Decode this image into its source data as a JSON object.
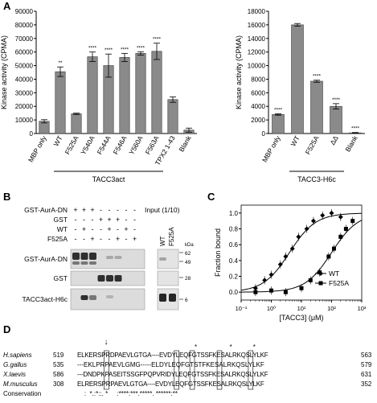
{
  "panels": {
    "a": "A",
    "b": "B",
    "c": "C",
    "d": "D"
  },
  "chart_data": [
    {
      "type": "bar",
      "ylabel": "Kinase activity (CPMA)",
      "ylim": [
        0,
        90000
      ],
      "yticks": [
        0,
        10000,
        20000,
        30000,
        40000,
        50000,
        60000,
        70000,
        80000,
        90000
      ],
      "categories": [
        "MBP only",
        "WT",
        "F525A",
        "Y540A",
        "F544A",
        "F546A",
        "Y560A",
        "F563A",
        "TPX2 1-43",
        "Blank"
      ],
      "values": [
        9000,
        45500,
        14500,
        56500,
        50000,
        56000,
        59000,
        60500,
        25000,
        2500
      ],
      "errors": [
        1200,
        3500,
        500,
        3500,
        8500,
        3000,
        1200,
        6000,
        2000,
        1500
      ],
      "stars": [
        "",
        "**",
        "",
        "****",
        "****",
        "****",
        "****",
        "****",
        "",
        ""
      ],
      "group_label": "TACC3act"
    },
    {
      "type": "bar",
      "ylabel": "Kinase activity (CPMA)",
      "ylim": [
        0,
        18000
      ],
      "yticks": [
        0,
        2000,
        4000,
        6000,
        8000,
        10000,
        12000,
        14000,
        16000,
        18000
      ],
      "categories": [
        "MBP only",
        "WT",
        "F525A",
        "ΔΔ",
        "Blank"
      ],
      "values": [
        2800,
        16000,
        7700,
        4000,
        100
      ],
      "errors": [
        100,
        200,
        150,
        400,
        50
      ],
      "stars": [
        "****",
        "",
        "****",
        "****",
        "****"
      ],
      "group_label": "TACC3-H6c"
    },
    {
      "type": "scatter",
      "xlabel": "[TACC3] (μM)",
      "ylabel": "Fraction bound",
      "xscale": "log",
      "xlim": [
        0.1,
        1000
      ],
      "ylim": [
        -0.1,
        1.1
      ],
      "yticks": [
        0.0,
        0.2,
        0.4,
        0.6,
        0.8,
        1.0
      ],
      "xticks": [
        "10⁻¹",
        "10⁰",
        "10¹",
        "10²",
        "10³"
      ],
      "series": [
        {
          "name": "WT",
          "marker": "diamond",
          "kd": 4,
          "x": [
            0.3,
            0.6,
            1,
            2,
            3,
            5,
            8,
            15,
            25,
            50,
            100,
            200
          ],
          "y": [
            0.05,
            0.15,
            0.22,
            0.35,
            0.45,
            0.55,
            0.7,
            0.8,
            0.9,
            0.97,
            1.0,
            0.95
          ]
        },
        {
          "name": "F525A",
          "marker": "square",
          "kd": 100,
          "x": [
            0.3,
            1,
            3,
            10,
            20,
            40,
            80,
            120,
            200,
            300,
            500
          ],
          "y": [
            0.0,
            0.02,
            0.0,
            0.05,
            0.15,
            0.25,
            0.45,
            0.55,
            0.7,
            0.8,
            0.9
          ]
        }
      ]
    }
  ],
  "gel": {
    "row_labels": [
      "GST-AurA-DN",
      "GST",
      "WT",
      "F525A"
    ],
    "plus_minus": [
      [
        "+",
        "+",
        "+",
        "-",
        "-",
        "-",
        "-",
        "-"
      ],
      [
        "-",
        "-",
        "-",
        "+",
        "+",
        "+",
        "-",
        "-"
      ],
      [
        "-",
        "+",
        "-",
        "-",
        "+",
        "-",
        "+",
        "-"
      ],
      [
        "-",
        "-",
        "+",
        "-",
        "-",
        "+",
        "-",
        "+"
      ]
    ],
    "input_label": "Input (1/10)",
    "lane_labels": [
      "WT",
      "F525A"
    ],
    "kda_label": "kDa",
    "blot_labels": [
      "GST-AurA-DN",
      "GST",
      "TACC3act-H6c"
    ],
    "markers": [
      "62",
      "49",
      "28",
      "6"
    ]
  },
  "alignment": {
    "arrow": "↓",
    "stars": [
      "*",
      "*",
      "*"
    ],
    "rows": [
      {
        "organism": "H.sapiens",
        "start": "519",
        "seq": "ELKERSPRDPAEVLGTGA----EVDYLEQFGTSSFKESALRKQSLYLKF",
        "end": "563"
      },
      {
        "organism": "G.gallus",
        "start": "535",
        "seq": "---EKLPRPAEVLGMG-----ELDYLEQFGTSTFKESALRKQSLYLKF",
        "end": "579"
      },
      {
        "organism": "X.laevis",
        "start": "586",
        "seq": "---DNDPKPASEITSSGFPQPVRIDYLEQFGTSSFKESALRKQSLYLKF",
        "end": "631"
      },
      {
        "organism": "M.musculus",
        "start": "308",
        "seq": "ELRERSPRPAEVLGTGA----EVDYLEQFGTSSFKESALRKQSLYLKF",
        "end": "352"
      }
    ],
    "conservation_label": "Conservation",
    "conservation": "    :  *.:*::. *     :****:***.*****. ******:**"
  }
}
